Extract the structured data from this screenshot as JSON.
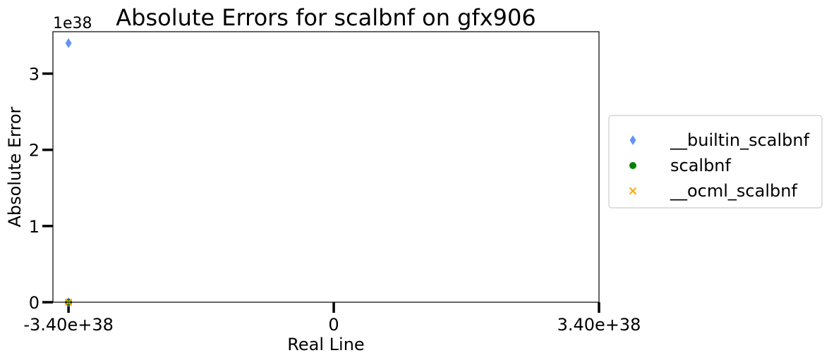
{
  "chart_data": {
    "type": "scatter",
    "title": "Absolute Errors for scalbnf on gfx906",
    "xlabel": "Real Line",
    "ylabel": "Absolute Error",
    "y_offset_label": "1e38",
    "xlim": [
      -3.6e+38,
      3.4e+38
    ],
    "ylim": [
      0,
      3.55
    ],
    "x_ticks": [
      {
        "value": -3.4e+38,
        "label": "-3.40e+38"
      },
      {
        "value": 0,
        "label": "0"
      },
      {
        "value": 3.4e+38,
        "label": "3.40e+38"
      }
    ],
    "y_ticks": [
      {
        "value": 0,
        "label": "0"
      },
      {
        "value": 1,
        "label": "1"
      },
      {
        "value": 2,
        "label": "2"
      },
      {
        "value": 3,
        "label": "3"
      }
    ],
    "grid": false,
    "legend_position": "outside-right",
    "series": [
      {
        "name": "__builtin_scalbnf",
        "marker": "diamond",
        "color": "#6495ED",
        "points": [
          {
            "x": -3.4e+38,
            "y": 3.4
          },
          {
            "x": -3.4e+38,
            "y": 0
          }
        ]
      },
      {
        "name": "scalbnf",
        "marker": "circle",
        "color": "#008000",
        "points": [
          {
            "x": -3.4e+38,
            "y": 0
          }
        ]
      },
      {
        "name": "__ocml_scalbnf",
        "marker": "x",
        "color": "#FFA500",
        "points": [
          {
            "x": -3.4e+38,
            "y": 0
          }
        ]
      }
    ]
  }
}
